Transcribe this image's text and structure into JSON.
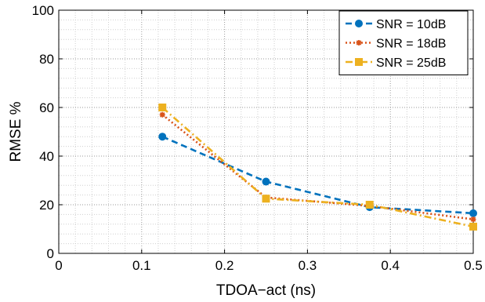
{
  "chart_data": {
    "type": "line",
    "xlabel": "TDOA−act (ns)",
    "ylabel": "RMSE %",
    "xlim": [
      0,
      0.5
    ],
    "ylim": [
      0,
      100
    ],
    "xticks": [
      "0",
      "0.1",
      "0.2",
      "0.3",
      "0.4",
      "0.5"
    ],
    "yticks": [
      "0",
      "20",
      "40",
      "60",
      "80",
      "100"
    ],
    "grid": true,
    "minor_grid": true,
    "legend_position": "top-right",
    "x": [
      0.125,
      0.25,
      0.375,
      0.5
    ],
    "series": [
      {
        "name": "SNR = 10dB",
        "values": [
          48,
          29.5,
          19,
          16.5
        ],
        "color": "#0072BD",
        "linestyle": "dashed",
        "marker": "circle"
      },
      {
        "name": "SNR = 18dB",
        "values": [
          57,
          23,
          19.5,
          14
        ],
        "color": "#D95319",
        "linestyle": "dotted",
        "marker": "asterisk"
      },
      {
        "name": "SNR = 25dB",
        "values": [
          60,
          22.5,
          20,
          11
        ],
        "color": "#EDB120",
        "linestyle": "dashdot",
        "marker": "square"
      }
    ]
  }
}
